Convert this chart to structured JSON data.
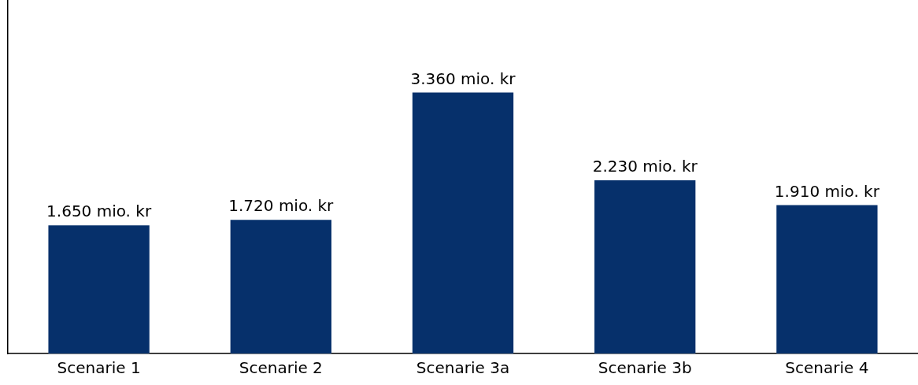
{
  "chart_data": {
    "type": "bar",
    "categories": [
      "Scenarie 1",
      "Scenarie 2",
      "Scenarie 3a",
      "Scenarie 3b",
      "Scenarie 4"
    ],
    "values": [
      1650,
      1720,
      3360,
      2230,
      1910
    ],
    "value_labels": [
      "1.650 mio. kr",
      "1.720 mio. kr",
      "3.360 mio. kr",
      "2.230 mio. kr",
      "1.910 mio. kr"
    ],
    "color": "#06306b",
    "ylim": [
      0,
      4550
    ],
    "tick_labels": "x",
    "grid": false,
    "legend": false
  }
}
